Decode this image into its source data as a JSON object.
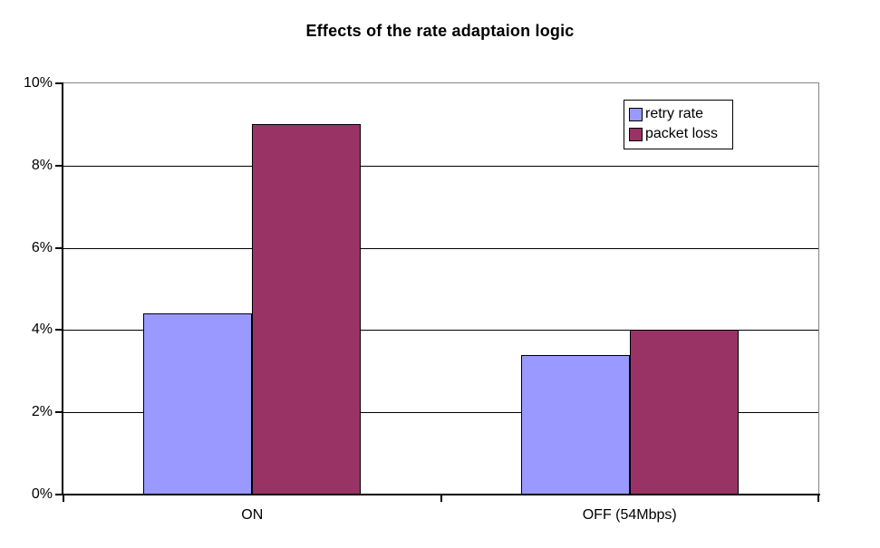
{
  "chart_data": {
    "type": "bar",
    "title": "Effects of the rate adaptaion logic",
    "categories": [
      "ON",
      "OFF (54Mbps)"
    ],
    "series": [
      {
        "name": "retry rate",
        "color": "#9999FF",
        "values": [
          4.4,
          3.4
        ]
      },
      {
        "name": "packet loss",
        "color": "#993366",
        "values": [
          9.0,
          4.0
        ]
      }
    ],
    "ylabel": "",
    "xlabel": "",
    "ylim": [
      0,
      10
    ],
    "ytick_step": 2,
    "ytick_labels": [
      "0%",
      "2%",
      "4%",
      "6%",
      "8%",
      "10%"
    ],
    "grid": true,
    "legend_position": "top-right",
    "colors": {
      "bar_border": "#000000",
      "gridline": "#000000",
      "axis": "#000000",
      "plot_frame": "#848484",
      "background": "#FFFFFF"
    }
  }
}
